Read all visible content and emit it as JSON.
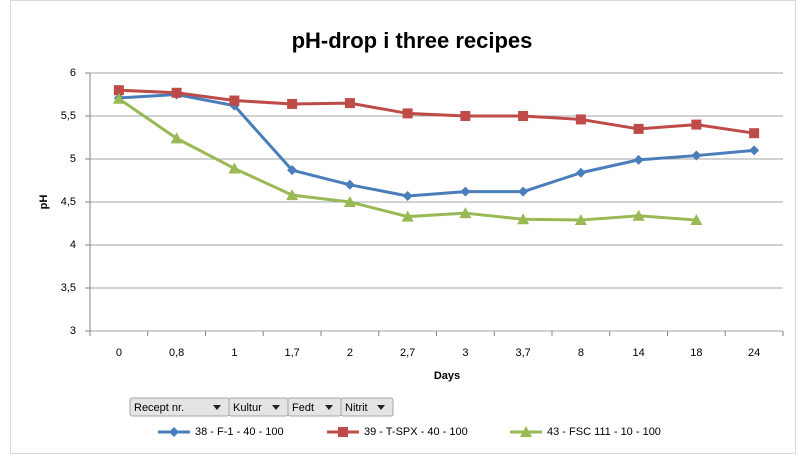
{
  "chart_data": {
    "type": "line",
    "title": "pH-drop i three recipes",
    "x_label": "Days",
    "y_label": "pH",
    "categories": [
      "0",
      "0,8",
      "1",
      "1,7",
      "2",
      "2,7",
      "3",
      "3,7",
      "8",
      "14",
      "18",
      "24"
    ],
    "series": [
      {
        "name": "38 - F-1 - 40 - 100",
        "color": "#4a7ebb",
        "marker": "diamond",
        "values": [
          5.71,
          5.75,
          5.62,
          4.87,
          4.7,
          4.57,
          4.62,
          4.62,
          4.84,
          4.99,
          5.04,
          5.1
        ]
      },
      {
        "name": "39 - T-SPX - 40 - 100",
        "color": "#be4b48",
        "marker": "square",
        "values": [
          5.8,
          5.77,
          5.68,
          5.64,
          5.65,
          5.53,
          5.5,
          5.5,
          5.46,
          5.35,
          5.4,
          5.3
        ]
      },
      {
        "name": "43 - FSC 111 - 10 - 100",
        "color": "#98b954",
        "marker": "triangle",
        "values": [
          5.7,
          5.24,
          4.89,
          4.58,
          4.5,
          4.33,
          4.37,
          4.3,
          4.29,
          4.34,
          4.29,
          null
        ]
      }
    ],
    "ylim": [
      3,
      6
    ],
    "yticks": [
      3,
      {
        "value": 3.5,
        "label": "3,5"
      },
      4,
      {
        "value": 4.5,
        "label": "4,5"
      },
      5,
      {
        "value": 5.5,
        "label": "5,5"
      },
      6
    ],
    "grid": true,
    "legend": "bottom"
  },
  "field_buttons": [
    "Recept nr.",
    "Kultur",
    "Fedt",
    "Nitrit"
  ]
}
